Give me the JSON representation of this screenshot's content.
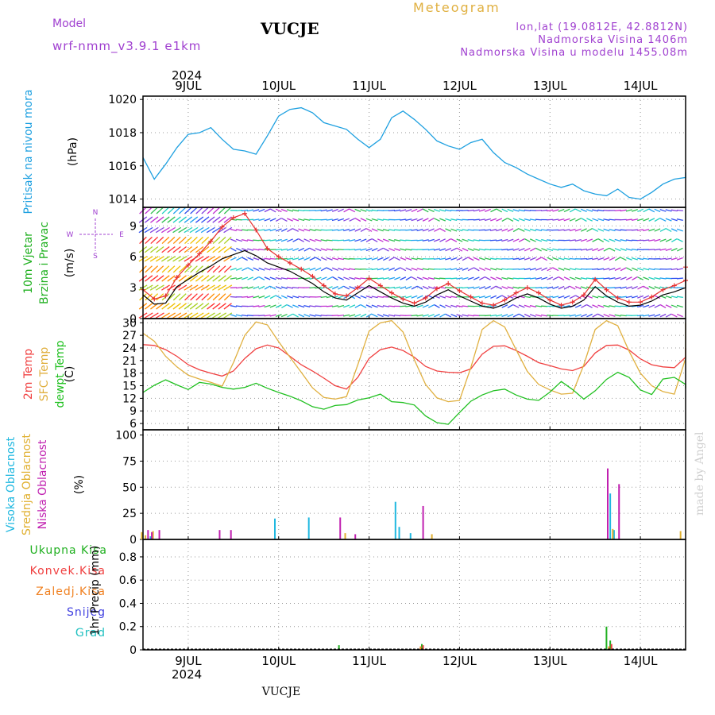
{
  "header": {
    "model_label": "Model",
    "model_name": "wrf-nmm_v3.9.1  e1km",
    "station": "VUCJE",
    "product": "Meteogram",
    "coords": "lon,lat (19.0812E, 42.8812N)",
    "elev": "Nadmorska Visina 1406m",
    "elev_model": "Nadmorska Visina u modelu 1455.08m",
    "footer_station": "VUCJE",
    "credit": "made by Angel"
  },
  "time_axis": {
    "year": "2024",
    "days": [
      "9JUL",
      "10JUL",
      "11JUL",
      "12JUL",
      "13JUL",
      "14JUL"
    ],
    "start_hours_before_first_label": 12,
    "total_hours": 144
  },
  "colors": {
    "pressure": "#1ea0e0",
    "temp2m": "#f04040",
    "sfc": "#e0b040",
    "dew": "#20c020",
    "high_cloud": "#20b8e0",
    "mid_cloud": "#e0b030",
    "low_cloud": "#c020b0",
    "total_precip": "#20b020",
    "conv_precip": "#f04040",
    "frozen_precip": "#f08020",
    "snow": "#4040e0",
    "hail": "#20c0c0",
    "wind_speed": "#000000",
    "wind_gust": "#e83030",
    "header_purple": "#a040d0",
    "header_gold": "#e0b040"
  },
  "chart_data": [
    {
      "type": "line",
      "id": "pressure",
      "ylabel_lines": [
        "Pritisak na nivou mora",
        "(hPa)"
      ],
      "ylim": [
        1013.5,
        1020.2
      ],
      "yticks": [
        1014,
        1016,
        1018,
        1020
      ],
      "grid": true,
      "series": [
        {
          "values_every_3h": [
            1016.5,
            1015.2,
            1016.1,
            1017.1,
            1017.9,
            1018.0,
            1018.3,
            1017.6,
            1017.0,
            1016.9,
            1016.7,
            1017.8,
            1019.0,
            1019.4,
            1019.5,
            1019.2,
            1018.6,
            1018.4,
            1018.2,
            1017.6,
            1017.1,
            1017.6,
            1018.9,
            1019.3,
            1018.8,
            1018.2,
            1017.5,
            1017.2,
            1017.0,
            1017.4,
            1017.6,
            1016.8,
            1016.2,
            1015.9,
            1015.5,
            1015.2,
            1014.9,
            1014.7,
            1014.9,
            1014.5,
            1014.3,
            1014.2,
            1014.6,
            1014.1,
            1014.0,
            1014.4,
            1014.9,
            1015.2,
            1015.3,
            1015.6
          ]
        }
      ]
    },
    {
      "type": "line",
      "id": "wind",
      "ylabel_lines": [
        "10m Vjetar",
        "Brzina i Pravac",
        "(m/s)"
      ],
      "compass": {
        "n": "N",
        "s": "S",
        "e": "E",
        "w": "W"
      },
      "ylim": [
        0,
        10.8
      ],
      "yticks": [
        0,
        3,
        6,
        9
      ],
      "grid": true,
      "series": [
        {
          "name": "speed",
          "values_every_3h": [
            2.3,
            1.4,
            1.5,
            3.1,
            3.8,
            4.5,
            5.1,
            5.8,
            6.2,
            6.6,
            6.1,
            5.4,
            5.0,
            4.6,
            4.0,
            3.4,
            2.6,
            2.0,
            1.8,
            2.5,
            3.2,
            2.6,
            2.0,
            1.5,
            1.2,
            1.6,
            2.3,
            2.8,
            2.2,
            1.7,
            1.2,
            1.0,
            1.4,
            2.0,
            2.4,
            2.0,
            1.4,
            1.0,
            1.2,
            1.8,
            3.1,
            2.2,
            1.6,
            1.2,
            1.3,
            1.7,
            2.3,
            2.6,
            3.0,
            4.4
          ]
        },
        {
          "name": "gust",
          "values_every_3h": [
            2.8,
            1.9,
            2.2,
            4.0,
            5.2,
            6.3,
            7.5,
            8.9,
            9.8,
            10.2,
            8.6,
            6.8,
            6.0,
            5.4,
            4.8,
            4.1,
            3.2,
            2.4,
            2.2,
            3.0,
            3.9,
            3.2,
            2.5,
            1.9,
            1.5,
            2.0,
            2.9,
            3.4,
            2.7,
            2.1,
            1.5,
            1.3,
            1.8,
            2.5,
            3.0,
            2.5,
            1.8,
            1.3,
            1.6,
            2.3,
            3.8,
            2.8,
            2.0,
            1.6,
            1.6,
            2.1,
            2.8,
            3.2,
            3.7,
            5.0
          ]
        }
      ]
    },
    {
      "type": "line",
      "id": "temperature",
      "ylabel_lines": [
        "2m Temp",
        "SFC Temp",
        "dewpt Temp",
        "(C)"
      ],
      "ylim": [
        4.5,
        31
      ],
      "yticks": [
        6,
        9,
        12,
        15,
        18,
        21,
        24,
        27,
        30
      ],
      "grid": true,
      "series": [
        {
          "name": "2m",
          "values_every_3h": [
            24.8,
            24.6,
            23.6,
            22.0,
            20.0,
            18.8,
            18.0,
            17.3,
            18.5,
            21.5,
            23.8,
            24.7,
            24.0,
            22.0,
            20.0,
            18.5,
            16.8,
            15.0,
            14.2,
            17.0,
            21.5,
            23.6,
            24.2,
            23.4,
            21.8,
            19.6,
            18.5,
            18.2,
            18.1,
            19.0,
            22.5,
            24.4,
            24.5,
            23.4,
            22.0,
            20.5,
            19.8,
            19.0,
            18.6,
            19.6,
            22.8,
            24.6,
            24.7,
            23.5,
            21.4,
            20.0,
            19.5,
            19.3,
            21.8,
            24.0
          ]
        },
        {
          "name": "sfc",
          "values_every_3h": [
            27.5,
            25.6,
            22.0,
            19.5,
            17.5,
            16.6,
            15.8,
            14.9,
            20.5,
            27.0,
            30.2,
            29.5,
            25.5,
            21.8,
            18.2,
            14.5,
            12.2,
            11.8,
            12.4,
            20.0,
            28.0,
            30.0,
            30.5,
            27.8,
            21.2,
            15.3,
            12.1,
            11.2,
            11.5,
            19.3,
            28.4,
            30.5,
            29.0,
            23.6,
            18.4,
            15.3,
            14.0,
            13.0,
            13.2,
            20.0,
            28.4,
            30.5,
            29.3,
            23.2,
            18.0,
            15.0,
            13.6,
            13.0,
            21.5,
            30.0
          ]
        },
        {
          "name": "dew",
          "values_every_3h": [
            13.4,
            15.1,
            16.4,
            15.2,
            14.1,
            15.8,
            15.4,
            14.6,
            14.2,
            14.6,
            15.6,
            14.4,
            13.4,
            12.5,
            11.4,
            10.0,
            9.4,
            10.3,
            10.5,
            11.6,
            12.1,
            13.0,
            11.2,
            11.0,
            10.4,
            7.8,
            6.2,
            5.8,
            8.6,
            11.3,
            12.8,
            13.8,
            14.2,
            12.8,
            11.8,
            11.5,
            13.5,
            16.0,
            14.1,
            11.8,
            13.8,
            16.5,
            18.2,
            17.0,
            14.0,
            12.9,
            16.6,
            17.0,
            15.3,
            14.4
          ]
        }
      ]
    },
    {
      "type": "bar",
      "id": "cloud",
      "ylabel_lines": [
        "Visoka Oblacnost",
        "Srednja Oblacnost",
        "Niska Oblacnost",
        "(%)"
      ],
      "ylim": [
        0,
        105
      ],
      "yticks": [
        0,
        25,
        50,
        75,
        100
      ],
      "grid": true,
      "series": [
        {
          "name": "high",
          "bars": [
            [
              2,
              3
            ],
            [
              35,
              20
            ],
            [
              44,
              21
            ],
            [
              67,
              36
            ],
            [
              68,
              12
            ],
            [
              71,
              6
            ],
            [
              124,
              44
            ],
            [
              125,
              9
            ]
          ]
        },
        {
          "name": "mid",
          "bars": [
            [
              0,
              7
            ],
            [
              1,
              4
            ],
            [
              3,
              8
            ],
            [
              54,
              6
            ],
            [
              77,
              5
            ],
            [
              125,
              10
            ],
            [
              143,
              8
            ]
          ]
        },
        {
          "name": "low",
          "bars": [
            [
              1,
              9
            ],
            [
              2,
              7
            ],
            [
              4,
              9
            ],
            [
              20,
              9
            ],
            [
              23,
              9
            ],
            [
              52,
              21
            ],
            [
              56,
              5
            ],
            [
              74,
              32
            ],
            [
              123,
              68
            ],
            [
              126,
              53
            ]
          ]
        }
      ]
    },
    {
      "type": "bar",
      "id": "precip",
      "ylabel_lines": [
        "Ukupna Kisa",
        "Konvek.Kisa",
        "Zaledj.Kisa",
        "Snijeg",
        "Grad",
        "1hr Precip (mm)"
      ],
      "ylim": [
        0,
        0.95
      ],
      "yticks": [
        0,
        0.2,
        0.4,
        0.6,
        0.8
      ],
      "grid": true,
      "series": [
        {
          "name": "total",
          "bars": [
            [
              52,
              0.04
            ],
            [
              74,
              0.05
            ],
            [
              123,
              0.2
            ],
            [
              124,
              0.08
            ]
          ]
        },
        {
          "name": "convective",
          "bars": [
            [
              74,
              0.04
            ],
            [
              124,
              0.05
            ]
          ]
        },
        {
          "name": "frozen",
          "bars": [
            [
              74,
              0.03
            ],
            [
              124,
              0.03
            ]
          ]
        }
      ]
    }
  ]
}
